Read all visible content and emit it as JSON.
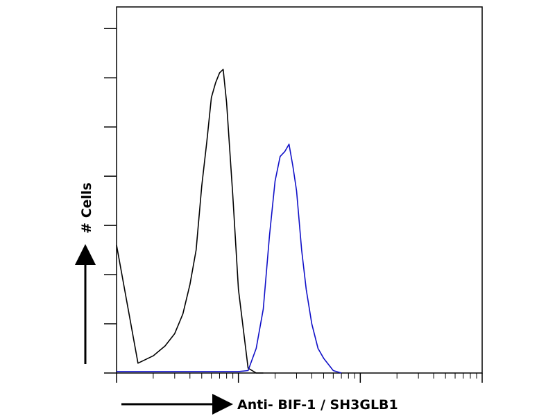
{
  "chart_data": {
    "type": "line",
    "xlabel": "Anti- BIF-1 / SH3GLB1",
    "ylabel": "# Cells",
    "xscale": "log",
    "x": [
      1,
      1.5,
      2,
      2.5,
      3,
      3.5,
      4,
      4.5,
      5,
      5.5,
      6,
      6.5,
      7,
      7.5,
      8,
      9,
      10,
      12,
      14,
      16,
      18,
      20,
      22,
      24,
      26,
      28,
      30,
      33,
      36,
      40,
      45,
      50,
      60,
      70,
      80,
      100,
      200,
      500,
      1000
    ],
    "series": [
      {
        "color": "#000000",
        "values": [
          2.6,
          0.2,
          0.35,
          0.55,
          0.8,
          1.2,
          1.8,
          2.5,
          3.8,
          4.7,
          5.6,
          5.9,
          6.1,
          6.17,
          5.5,
          3.6,
          1.7,
          0.1,
          0,
          0,
          null,
          null,
          null,
          null,
          null,
          null,
          null,
          null,
          null,
          null,
          null,
          null,
          null,
          null,
          null,
          null,
          null,
          null,
          null
        ]
      },
      {
        "color": "#1010c8",
        "values": [
          0.03,
          0.03,
          0.03,
          0.03,
          0.03,
          0.03,
          0.03,
          0.03,
          0.03,
          0.03,
          0.03,
          0.03,
          0.03,
          0.03,
          0.03,
          0.03,
          0.03,
          0.05,
          0.5,
          1.3,
          2.8,
          3.9,
          4.4,
          4.5,
          4.65,
          4.2,
          3.7,
          2.5,
          1.7,
          1.0,
          0.5,
          0.3,
          0.05,
          0,
          null,
          null,
          null,
          null,
          null
        ]
      }
    ],
    "xlim": [
      1,
      1000
    ],
    "xticks": [
      1,
      10,
      100,
      1000
    ],
    "xminorticks": [
      2,
      3,
      4,
      5,
      6,
      7,
      8,
      9,
      20,
      30,
      40,
      50,
      60,
      70,
      80,
      90,
      200,
      300,
      400,
      500,
      600,
      700,
      800,
      900
    ],
    "ylim": [
      0,
      7.44
    ],
    "yticks": [
      0,
      1,
      2,
      3,
      4,
      5,
      6,
      7
    ]
  }
}
